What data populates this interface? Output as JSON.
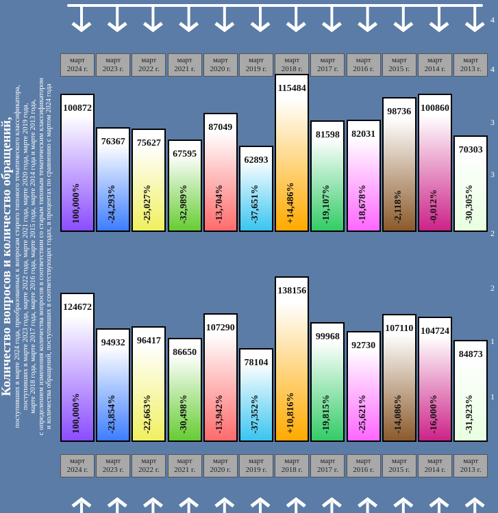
{
  "chart_data": [
    {
      "type": "bar",
      "name": "questions",
      "categories": [
        "март 2024 г.",
        "март 2023 г.",
        "март 2022 г.",
        "март 2021 г.",
        "март 2020 г.",
        "март 2019 г.",
        "март 2018 г.",
        "март 2017 г.",
        "март 2016 г.",
        "март 2015 г.",
        "март 2014 г.",
        "март 2013 г."
      ],
      "values": [
        100872,
        76367,
        75627,
        67595,
        87049,
        62893,
        115484,
        81598,
        82031,
        98736,
        100860,
        70303
      ],
      "percent_labels": [
        "100,000%",
        "-24,293%",
        "-25,027%",
        "-32,989%",
        "-13,704%",
        "-37,651%",
        "+14,486%",
        "-19,107%",
        "-18,678%",
        "-2,118%",
        "-0,012%",
        "-30,305%"
      ]
    },
    {
      "type": "bar",
      "name": "appeals",
      "categories": [
        "март 2024 г.",
        "март 2023 г.",
        "март 2022 г.",
        "март 2021 г.",
        "март 2020 г.",
        "март 2019 г.",
        "март 2018 г.",
        "март 2017 г.",
        "март 2016 г.",
        "март 2015 г.",
        "март 2014 г.",
        "март 2013 г."
      ],
      "values": [
        124672,
        94932,
        96417,
        86650,
        107290,
        78104,
        138156,
        99968,
        92730,
        107110,
        104724,
        84873
      ],
      "percent_labels": [
        "100,000%",
        "-23,854%",
        "-22,663%",
        "-30,498%",
        "-13,942%",
        "-37,352%",
        "+10,816%",
        "-19,815%",
        "-25,621%",
        "-14,086%",
        "-16,000%",
        "-31,923%"
      ]
    }
  ],
  "months_top": [
    {
      "m": "март",
      "y": "2024 г."
    },
    {
      "m": "март",
      "y": "2023 г."
    },
    {
      "m": "март",
      "y": "2022 г."
    },
    {
      "m": "март",
      "y": "2021 г."
    },
    {
      "m": "март",
      "y": "2020 г."
    },
    {
      "m": "март",
      "y": "2019 г."
    },
    {
      "m": "март",
      "y": "2018 г."
    },
    {
      "m": "март",
      "y": "2017 г."
    },
    {
      "m": "март",
      "y": "2016 г."
    },
    {
      "m": "март",
      "y": "2015 г."
    },
    {
      "m": "март",
      "y": "2014 г."
    },
    {
      "m": "март",
      "y": "2013 г."
    }
  ],
  "side": {
    "title": "Количество вопросов и количество обращений,",
    "lines": [
      "поступивших в марте 2024 года, преобразованных к вопросам старого типового тематического классификатора,",
      "поступивших в марте 2023 года, марте 2022 года, марте 2021 года, марте 2020 года, марте 2019 года,",
      "марте 2018 года, марте 2017 года, марте 2016 года, марте 2015 года, марте 2014 года и марте 2013 года,",
      "с определением изменения количества вопросов в соответствии со старым типовым тематическим классификатором",
      "и количества обращений, поступивших в соответствующих годах, в процентах по сравнению с мартом 2024 года"
    ]
  },
  "edge_numbers": [
    "4",
    "4",
    "3",
    "3",
    "2",
    "2",
    "1",
    "1"
  ],
  "colors": {
    "background": "#5b7ca6",
    "gradient_bottoms": [
      "#8a4dff",
      "#3d7dff",
      "#f0f060",
      "#66cc33",
      "#ff6b6b",
      "#39c5f0",
      "#ffaa00",
      "#33cc66",
      "#ff66ff",
      "#8b5a2b",
      "#cc2288",
      "#e8ffe0"
    ]
  }
}
